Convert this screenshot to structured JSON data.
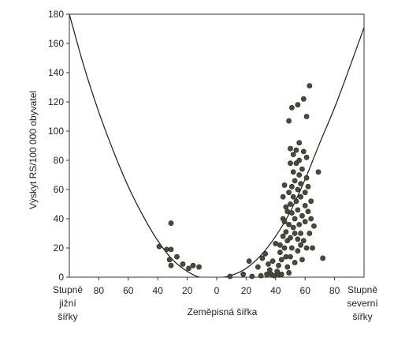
{
  "chart_data": {
    "type": "scatter",
    "title": "",
    "xlabel": "Zeměpisná šířka",
    "ylabel": "Výskyt RS/100 000 obyvatel",
    "x_axis_note": "latitude: southern hemisphere on the left, northern on the right",
    "xlim": [
      -100,
      100
    ],
    "ylim": [
      0,
      180
    ],
    "grid": false,
    "legend": "none",
    "x_ticks": [
      {
        "value": -80,
        "label": "80"
      },
      {
        "value": -60,
        "label": "60"
      },
      {
        "value": -40,
        "label": "40"
      },
      {
        "value": -20,
        "label": "20"
      },
      {
        "value": 0,
        "label": "0"
      },
      {
        "value": 20,
        "label": "20"
      },
      {
        "value": 40,
        "label": "40"
      },
      {
        "value": 60,
        "label": "60"
      },
      {
        "value": 80,
        "label": "80"
      }
    ],
    "y_ticks": [
      0,
      20,
      40,
      60,
      80,
      100,
      120,
      140,
      160,
      180
    ],
    "edge_labels": {
      "left": [
        "Stupně",
        "jižní",
        "šířky"
      ],
      "right": [
        "Stupně",
        "severní",
        "šířky"
      ]
    },
    "point_color": "#4a4a3c",
    "line_color": "#1a1a1a",
    "series": [
      {
        "type": "scatter",
        "points": [
          [
            -39,
            21
          ],
          [
            -34,
            19
          ],
          [
            -31,
            19
          ],
          [
            -31,
            37
          ],
          [
            -32,
            12
          ],
          [
            -31,
            8
          ],
          [
            -27,
            14
          ],
          [
            -23,
            9
          ],
          [
            -19,
            6
          ],
          [
            -16,
            8
          ],
          [
            -12,
            7
          ],
          [
            9,
            0
          ],
          [
            18,
            2
          ],
          [
            22,
            11
          ],
          [
            24,
            0
          ],
          [
            28,
            7
          ],
          [
            30,
            1
          ],
          [
            31,
            13
          ],
          [
            33,
            16
          ],
          [
            34,
            2
          ],
          [
            35,
            9
          ],
          [
            36,
            5
          ],
          [
            37,
            2
          ],
          [
            38,
            11
          ],
          [
            39,
            1
          ],
          [
            40,
            23
          ],
          [
            41,
            4
          ],
          [
            42,
            2
          ],
          [
            42,
            8
          ],
          [
            43,
            17
          ],
          [
            43,
            22
          ],
          [
            44,
            12
          ],
          [
            44,
            2
          ],
          [
            45,
            28
          ],
          [
            45,
            40
          ],
          [
            45,
            55
          ],
          [
            46,
            38
          ],
          [
            46,
            63
          ],
          [
            46,
            20
          ],
          [
            47,
            14
          ],
          [
            47,
            48
          ],
          [
            47,
            31
          ],
          [
            48,
            25
          ],
          [
            48,
            45
          ],
          [
            48,
            7
          ],
          [
            49,
            3
          ],
          [
            49,
            36
          ],
          [
            49,
            58
          ],
          [
            49,
            107
          ],
          [
            50,
            27
          ],
          [
            50,
            50
          ],
          [
            50,
            78
          ],
          [
            50,
            88
          ],
          [
            50,
            14
          ],
          [
            51,
            62
          ],
          [
            51,
            44
          ],
          [
            51,
            116
          ],
          [
            51,
            20
          ],
          [
            52,
            34
          ],
          [
            52,
            55
          ],
          [
            52,
            72
          ],
          [
            52,
            84
          ],
          [
            53,
            10
          ],
          [
            53,
            40
          ],
          [
            53,
            66
          ],
          [
            53,
            30
          ],
          [
            54,
            78
          ],
          [
            54,
            52
          ],
          [
            54,
            87
          ],
          [
            55,
            18
          ],
          [
            55,
            46
          ],
          [
            55,
            60
          ],
          [
            55,
            26
          ],
          [
            55,
            118
          ],
          [
            56,
            36
          ],
          [
            56,
            70
          ],
          [
            56,
            80
          ],
          [
            56,
            92
          ],
          [
            57,
            22
          ],
          [
            57,
            55
          ],
          [
            57,
            30
          ],
          [
            57,
            64
          ],
          [
            58,
            42
          ],
          [
            58,
            12
          ],
          [
            58,
            74
          ],
          [
            59,
            86
          ],
          [
            59,
            25
          ],
          [
            59,
            122
          ],
          [
            60,
            38
          ],
          [
            60,
            58
          ],
          [
            60,
            49
          ],
          [
            61,
            68
          ],
          [
            61,
            82
          ],
          [
            61,
            20
          ],
          [
            61,
            110
          ],
          [
            62,
            45
          ],
          [
            62,
            62
          ],
          [
            63,
            131
          ],
          [
            63,
            30
          ],
          [
            64,
            52
          ],
          [
            64,
            40
          ],
          [
            65,
            20
          ],
          [
            66,
            35
          ],
          [
            69,
            72
          ],
          [
            72,
            13
          ]
        ]
      },
      {
        "type": "line",
        "description": "curve",
        "points": [
          [
            -100,
            180
          ],
          [
            -90,
            144
          ],
          [
            -80,
            113
          ],
          [
            -70,
            86
          ],
          [
            -60,
            62
          ],
          [
            -50,
            42
          ],
          [
            -40,
            25
          ],
          [
            -30,
            12
          ],
          [
            -20,
            4
          ],
          [
            -12,
            0
          ],
          [
            -4,
            -2
          ],
          [
            5,
            0
          ],
          [
            12,
            2
          ],
          [
            20,
            6
          ],
          [
            30,
            15
          ],
          [
            40,
            28
          ],
          [
            50,
            45
          ],
          [
            60,
            67
          ],
          [
            70,
            92
          ],
          [
            80,
            116
          ],
          [
            90,
            143
          ],
          [
            100,
            171
          ]
        ]
      }
    ]
  }
}
